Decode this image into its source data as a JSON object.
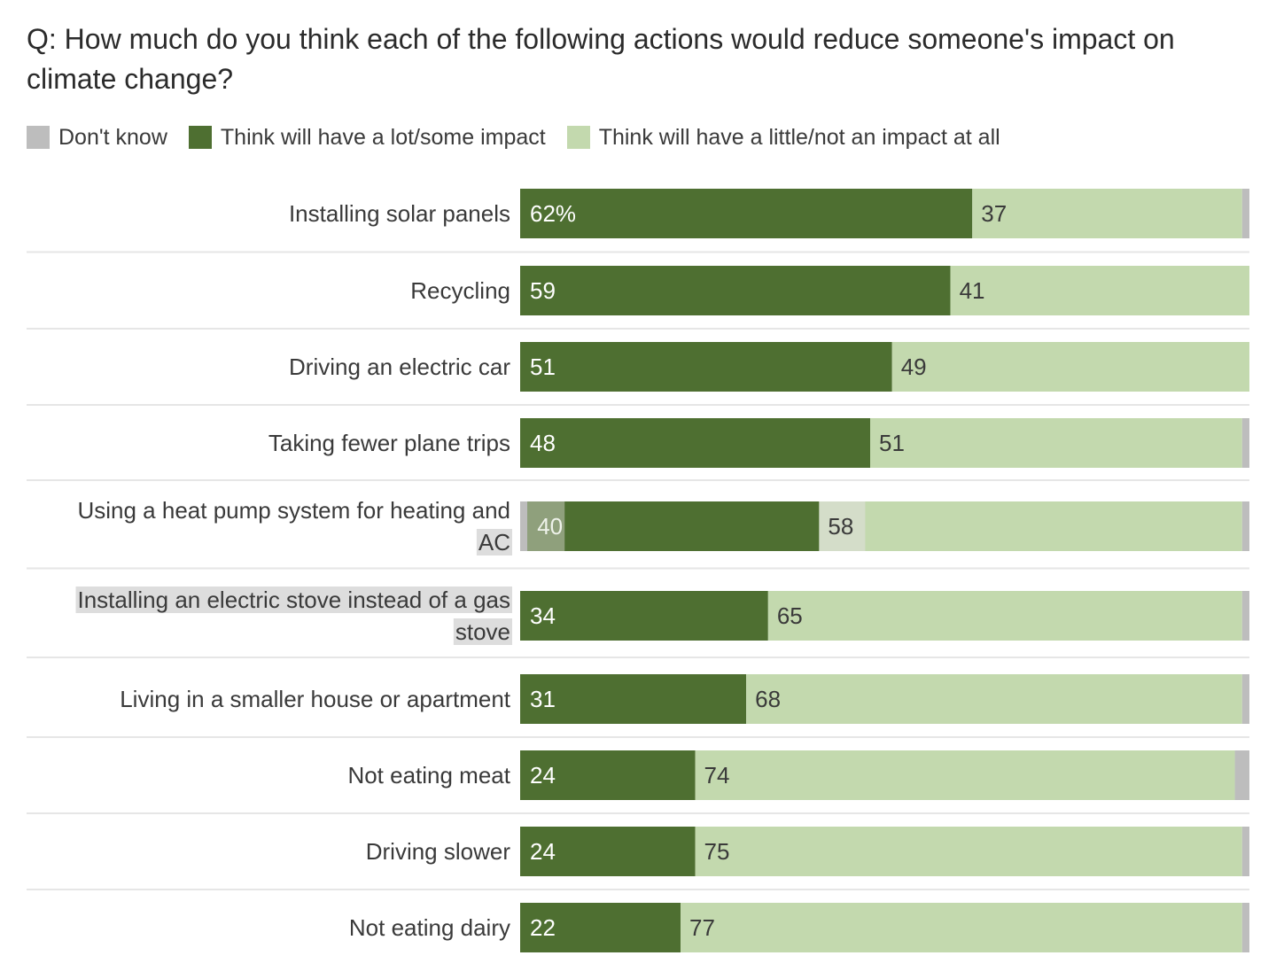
{
  "title": "Q: How much do you think each of the following actions would reduce someone's impact on climate change?",
  "legend": [
    {
      "label": "Don't know",
      "color": "#bdbdbd"
    },
    {
      "label": "Think will have a lot/some impact",
      "color": "#4e6f31"
    },
    {
      "label": "Think will have a little/not an impact at all",
      "color": "#c3d9ae"
    }
  ],
  "chart_data": {
    "type": "bar",
    "orientation": "horizontal",
    "stacked": true,
    "title": "Q: How much do you think each of the following actions would reduce someone's impact on climate change?",
    "categories": [
      "Installing solar panels",
      "Recycling",
      "Driving an electric car",
      "Taking fewer plane trips",
      "Using a heat pump system for heating and AC",
      "Installing an electric stove instead of a gas stove",
      "Living in a smaller house or apartment",
      "Not eating meat",
      "Driving slower",
      "Not eating dairy"
    ],
    "series": [
      {
        "name": "Think will have a lot/some impact",
        "color": "#4e6f31",
        "values": [
          62,
          59,
          51,
          48,
          40,
          34,
          31,
          24,
          24,
          22
        ]
      },
      {
        "name": "Think will have a little/not an impact at all",
        "color": "#c3d9ae",
        "values": [
          37,
          41,
          49,
          51,
          58,
          65,
          68,
          74,
          75,
          77
        ]
      },
      {
        "name": "Don't know",
        "color": "#bdbdbd",
        "values": [
          1,
          0,
          0,
          1,
          2,
          1,
          1,
          2,
          1,
          1
        ]
      }
    ],
    "value_labels": {
      "lot_some": [
        "62%",
        "59",
        "51",
        "48",
        "40",
        "34",
        "31",
        "24",
        "24",
        "22"
      ],
      "little_none": [
        "37",
        "41",
        "49",
        "51",
        "58",
        "65",
        "68",
        "74",
        "75",
        "77"
      ]
    },
    "xlim": [
      0,
      100
    ],
    "legend_position": "top-left",
    "grid": false
  }
}
